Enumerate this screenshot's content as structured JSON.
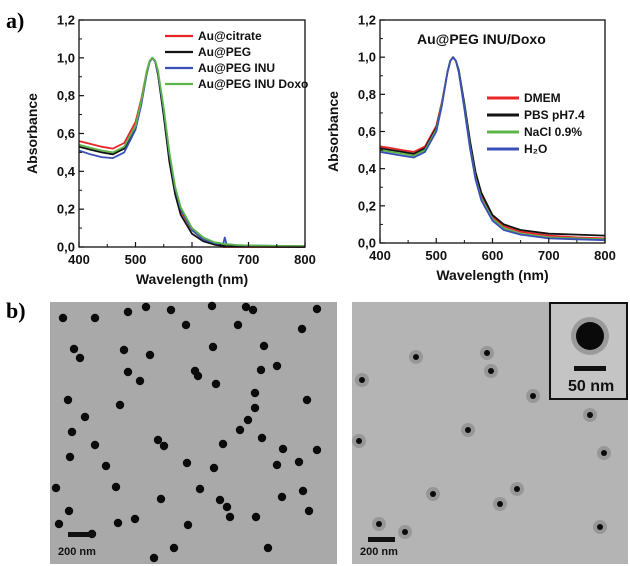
{
  "panel_labels": {
    "a": "a)",
    "b": "b)"
  },
  "chart_data": [
    {
      "type": "line",
      "title": "",
      "xlabel": "Wavelength (nm)",
      "ylabel": "Absorbance",
      "xlim": [
        400,
        800
      ],
      "ylim": [
        0.0,
        1.2
      ],
      "xticks": [
        "400",
        "500",
        "600",
        "700",
        "800"
      ],
      "yticks": [
        "0,0",
        "0,2",
        "0,4",
        "0,6",
        "0,8",
        "1,0",
        "1,2"
      ],
      "legend_position": "top-right",
      "series": [
        {
          "name": "Au@citrate",
          "color": "#e8262a",
          "x": [
            400,
            420,
            440,
            460,
            480,
            500,
            510,
            520,
            525,
            530,
            535,
            540,
            550,
            560,
            570,
            580,
            600,
            620,
            640,
            650,
            655,
            660,
            680,
            700,
            750,
            800
          ],
          "y": [
            0.56,
            0.545,
            0.53,
            0.52,
            0.55,
            0.66,
            0.78,
            0.93,
            0.98,
            1.0,
            0.98,
            0.91,
            0.7,
            0.47,
            0.3,
            0.19,
            0.09,
            0.04,
            0.02,
            0.012,
            0.0,
            0.0,
            0.0,
            0.0,
            0.0,
            0.0
          ]
        },
        {
          "name": "Au@PEG",
          "color": "#111111",
          "x": [
            400,
            420,
            440,
            460,
            480,
            500,
            510,
            520,
            525,
            530,
            535,
            540,
            550,
            560,
            570,
            580,
            600,
            620,
            640,
            650,
            660,
            680,
            700,
            750,
            800
          ],
          "y": [
            0.53,
            0.515,
            0.5,
            0.49,
            0.52,
            0.63,
            0.76,
            0.92,
            0.98,
            1.0,
            0.98,
            0.91,
            0.69,
            0.45,
            0.28,
            0.17,
            0.07,
            0.03,
            0.012,
            0.008,
            0.005,
            0.003,
            0.002,
            0.001,
            0.0
          ]
        },
        {
          "name": "Au@PEG INU",
          "color": "#3a4fb8",
          "x": [
            400,
            420,
            440,
            460,
            480,
            500,
            510,
            520,
            525,
            530,
            535,
            540,
            550,
            560,
            570,
            580,
            600,
            620,
            640,
            655,
            658,
            661,
            680,
            700,
            750,
            800
          ],
          "y": [
            0.51,
            0.49,
            0.475,
            0.47,
            0.5,
            0.62,
            0.75,
            0.92,
            0.98,
            1.0,
            0.98,
            0.92,
            0.72,
            0.49,
            0.31,
            0.2,
            0.09,
            0.04,
            0.02,
            0.015,
            0.05,
            0.015,
            0.01,
            0.008,
            0.006,
            0.005
          ]
        },
        {
          "name": "Au@PEG INU Doxo",
          "color": "#5cb548",
          "x": [
            400,
            420,
            440,
            460,
            480,
            500,
            510,
            520,
            525,
            530,
            535,
            540,
            550,
            560,
            570,
            580,
            600,
            620,
            640,
            660,
            680,
            700,
            750,
            800
          ],
          "y": [
            0.54,
            0.525,
            0.51,
            0.5,
            0.53,
            0.64,
            0.77,
            0.93,
            0.985,
            1.0,
            0.985,
            0.93,
            0.73,
            0.5,
            0.32,
            0.21,
            0.1,
            0.05,
            0.025,
            0.015,
            0.01,
            0.008,
            0.006,
            0.005
          ]
        }
      ]
    },
    {
      "type": "line",
      "title": "Au@PEG INU/Doxo",
      "xlabel": "Wavelength (nm)",
      "ylabel": "Absorbance",
      "xlim": [
        400,
        800
      ],
      "ylim": [
        0.0,
        1.2
      ],
      "xticks": [
        "400",
        "500",
        "600",
        "700",
        "800"
      ],
      "yticks": [
        "0,0",
        "0,2",
        "0,4",
        "0,6",
        "0,8",
        "1,0",
        "1,2"
      ],
      "legend_position": "right",
      "series": [
        {
          "name": "DMEM",
          "color": "#e8262a",
          "x": [
            400,
            420,
            440,
            460,
            480,
            500,
            510,
            520,
            525,
            530,
            535,
            540,
            550,
            560,
            570,
            580,
            600,
            620,
            650,
            700,
            750,
            800
          ],
          "y": [
            0.52,
            0.51,
            0.5,
            0.49,
            0.52,
            0.63,
            0.76,
            0.92,
            0.98,
            1.0,
            0.98,
            0.92,
            0.74,
            0.53,
            0.36,
            0.25,
            0.14,
            0.09,
            0.06,
            0.04,
            0.03,
            0.025
          ]
        },
        {
          "name": "PBS pH7.4",
          "color": "#111111",
          "x": [
            400,
            420,
            440,
            460,
            480,
            500,
            510,
            520,
            525,
            530,
            535,
            540,
            550,
            560,
            570,
            580,
            600,
            620,
            650,
            700,
            750,
            800
          ],
          "y": [
            0.51,
            0.5,
            0.49,
            0.48,
            0.51,
            0.62,
            0.75,
            0.92,
            0.98,
            1.0,
            0.98,
            0.93,
            0.75,
            0.55,
            0.38,
            0.27,
            0.15,
            0.1,
            0.07,
            0.05,
            0.045,
            0.04
          ]
        },
        {
          "name": "NaCl 0.9%",
          "color": "#5cb548",
          "x": [
            400,
            420,
            440,
            460,
            480,
            500,
            510,
            520,
            525,
            530,
            535,
            540,
            550,
            560,
            570,
            580,
            600,
            620,
            650,
            700,
            750,
            800
          ],
          "y": [
            0.5,
            0.49,
            0.48,
            0.47,
            0.5,
            0.61,
            0.75,
            0.92,
            0.98,
            1.0,
            0.98,
            0.92,
            0.73,
            0.52,
            0.35,
            0.24,
            0.13,
            0.08,
            0.05,
            0.03,
            0.025,
            0.02
          ]
        },
        {
          "name": "H₂O",
          "color": "#3a4fb8",
          "x": [
            400,
            420,
            440,
            460,
            480,
            500,
            510,
            520,
            525,
            530,
            535,
            540,
            550,
            560,
            570,
            580,
            600,
            620,
            650,
            700,
            750,
            800
          ],
          "y": [
            0.49,
            0.48,
            0.47,
            0.46,
            0.49,
            0.6,
            0.74,
            0.92,
            0.98,
            1.0,
            0.98,
            0.92,
            0.72,
            0.51,
            0.34,
            0.23,
            0.12,
            0.07,
            0.045,
            0.025,
            0.02,
            0.015
          ]
        }
      ]
    }
  ],
  "micrographs": {
    "left": {
      "scalebar_label": "200 nm"
    },
    "right": {
      "scalebar_label": "200 nm",
      "inset_scalebar_label": "50 nm"
    }
  }
}
